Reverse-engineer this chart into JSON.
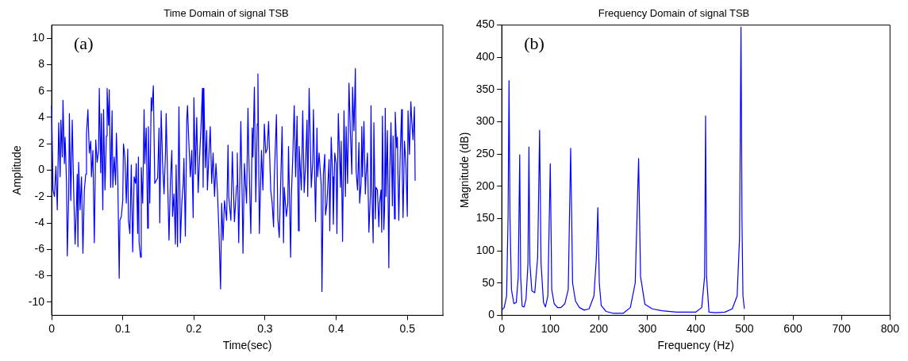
{
  "chart_data": [
    {
      "type": "line",
      "title": "Time Domain of signal TSB",
      "xlabel": "Time(sec)",
      "ylabel": "Amplitude",
      "annotations": [
        "(a)"
      ],
      "xlim": [
        0,
        0.55
      ],
      "ylim": [
        -11,
        11
      ],
      "xticks": [
        0,
        0.1,
        0.2,
        0.3,
        0.4,
        0.5
      ],
      "yticks": [
        -10,
        -8,
        -6,
        -4,
        -2,
        0,
        2,
        4,
        6,
        8,
        10
      ],
      "grid": false,
      "marker": "none",
      "series": [
        {
          "color": "#0000ff",
          "x": [
            0,
            0.002,
            0.004,
            0.006,
            0.008,
            0.01,
            0.012,
            0.013,
            0.015,
            0.016,
            0.018,
            0.019,
            0.021,
            0.022,
            0.024,
            0.025,
            0.027,
            0.029,
            0.031,
            0.033,
            0.035,
            0.036,
            0.037,
            0.038,
            0.04,
            0.042,
            0.044,
            0.046,
            0.048,
            0.049,
            0.051,
            0.053,
            0.055,
            0.056,
            0.058,
            0.06,
            0.062,
            0.064,
            0.066,
            0.067,
            0.069,
            0.07,
            0.072,
            0.073,
            0.075,
            0.077,
            0.078,
            0.08,
            0.081,
            0.083,
            0.085,
            0.086,
            0.088,
            0.09,
            0.091,
            0.093,
            0.095,
            0.096,
            0.098,
            0.1,
            0.101,
            0.103,
            0.105,
            0.107,
            0.108,
            0.11,
            0.112,
            0.113,
            0.114,
            0.116,
            0.118,
            0.119,
            0.121,
            0.122,
            0.123,
            0.125,
            0.126,
            0.128,
            0.13,
            0.131,
            0.133,
            0.135,
            0.136,
            0.137,
            0.138,
            0.14,
            0.141,
            0.143,
            0.145,
            0.147,
            0.149,
            0.151,
            0.152,
            0.154,
            0.156,
            0.158,
            0.16,
            0.161,
            0.163,
            0.165,
            0.167,
            0.169,
            0.17,
            0.172,
            0.174,
            0.175,
            0.177,
            0.179,
            0.181,
            0.183,
            0.185,
            0.186,
            0.188,
            0.19,
            0.191,
            0.193,
            0.195,
            0.197,
            0.199,
            0.2,
            0.202,
            0.204,
            0.206,
            0.208,
            0.21,
            0.212,
            0.213,
            0.214,
            0.216,
            0.218,
            0.219,
            0.221,
            0.223,
            0.225,
            0.227,
            0.229,
            0.231,
            0.233,
            0.235,
            0.2375,
            0.239,
            0.241,
            0.243,
            0.246,
            0.248,
            0.249,
            0.252,
            0.254,
            0.255,
            0.257,
            0.26,
            0.261,
            0.263,
            0.266,
            0.268,
            0.269,
            0.271,
            0.274,
            0.276,
            0.277,
            0.28,
            0.282,
            0.283,
            0.285,
            0.287,
            0.289,
            0.29,
            0.292,
            0.295,
            0.297,
            0.299,
            0.301,
            0.303,
            0.305,
            0.308,
            0.31,
            0.312,
            0.313,
            0.316,
            0.318,
            0.32,
            0.322,
            0.324,
            0.326,
            0.327,
            0.33,
            0.332,
            0.333,
            0.336,
            0.337,
            0.339,
            0.341,
            0.343,
            0.345,
            0.347,
            0.348,
            0.351,
            0.353,
            0.355,
            0.357,
            0.359,
            0.36,
            0.362,
            0.365,
            0.367,
            0.368,
            0.371,
            0.373,
            0.374,
            0.376,
            0.379,
            0.38,
            0.382,
            0.384,
            0.385,
            0.387,
            0.39,
            0.391,
            0.393,
            0.395,
            0.396,
            0.398,
            0.4,
            0.401,
            0.403,
            0.406,
            0.407,
            0.409,
            0.411,
            0.413,
            0.414,
            0.416,
            0.418,
            0.42,
            0.422,
            0.423,
            0.425,
            0.427,
            0.428,
            0.43,
            0.432,
            0.433,
            0.435,
            0.436,
            0.437,
            0.439,
            0.441,
            0.442,
            0.444,
            0.446,
            0.448,
            0.449,
            0.45,
            0.452,
            0.453,
            0.455,
            0.456,
            0.458,
            0.46,
            0.461,
            0.463,
            0.464,
            0.465,
            0.467,
            0.468,
            0.469,
            0.47,
            0.472,
            0.474,
            0.475,
            0.477,
            0.479,
            0.48,
            0.482,
            0.483,
            0.485,
            0.486,
            0.488,
            0.49,
            0.492,
            0.493,
            0.494,
            0.496,
            0.498,
            0.5,
            0.501,
            0.503,
            0.505,
            0.506,
            0.508,
            0.51,
            0.511
          ],
          "values": [
            4.9,
            -1.5,
            -2,
            0.3,
            -3,
            3.6,
            -0.5,
            3.8,
            1,
            5.3,
            0.5,
            2.5,
            -1,
            -6.5,
            -2,
            4.3,
            -2.3,
            3.8,
            -1.5,
            -5.6,
            -2.5,
            -0.3,
            -5.8,
            0.6,
            -3,
            -0.5,
            -6.3,
            -1.5,
            -0.3,
            2.7,
            4.6,
            1.3,
            2.2,
            -0.5,
            1.5,
            -5.5,
            2.3,
            0.6,
            1.5,
            6.2,
            -0.2,
            4.3,
            -3,
            4.6,
            -1.5,
            2.6,
            6.2,
            3.4,
            6.1,
            -1.3,
            4.5,
            -1.3,
            1,
            -1.1,
            2.8,
            -0.5,
            -8.2,
            -3.8,
            -3.5,
            -2.3,
            2,
            1,
            -2.5,
            1.6,
            -3.8,
            -4.8,
            0.4,
            -3,
            -6.2,
            -0.5,
            -1,
            0.5,
            -4.8,
            1,
            -5.5,
            -6.6,
            0.2,
            -2.5,
            4.6,
            0.5,
            3.2,
            -4.4,
            3.3,
            0.5,
            -2.5,
            5.5,
            4.5,
            6.4,
            -1,
            -0.8,
            -0.6,
            3.2,
            -4,
            4.5,
            0.5,
            -1.8,
            1.2,
            4.3,
            -0.5,
            -5.3,
            -0.8,
            1.5,
            -3.5,
            -1.8,
            -5.6,
            0.4,
            -5.8,
            4.8,
            -5.5,
            -2.5,
            -1,
            0.9,
            -5,
            3.8,
            4.9,
            2,
            -0.5,
            1.5,
            -3.6,
            5.5,
            -0.3,
            4,
            -1.7,
            1,
            3.3,
            6.2,
            -1.3,
            6.2,
            0.2,
            3,
            -1.5,
            1,
            3.3,
            -1,
            1.3,
            -2,
            0.5,
            -1.5,
            -4.3,
            -9,
            -2.5,
            -5.3,
            -2.3,
            -3.8,
            1.9,
            -2,
            -3.8,
            1.4,
            -0.5,
            -3.9,
            -1.2,
            1.3,
            -5.5,
            3.7,
            -2.5,
            -6.3,
            0.5,
            -2.5,
            4.7,
            1.5,
            -4.8,
            3.2,
            1,
            6.3,
            -2.4,
            3.5,
            7.3,
            -4.8,
            1.5,
            -1.5,
            3.5,
            1.3,
            1.6,
            3.7,
            -1.5,
            -2.5,
            -4.3,
            -0.6,
            4.2,
            -3.7,
            -5.1,
            -1,
            3.3,
            -5.5,
            -1.3,
            -3.5,
            -2.5,
            1.8,
            -6.6,
            -2,
            1,
            4.9,
            -0.5,
            4.1,
            -4.6,
            1.8,
            -1.5,
            4.5,
            -1.7,
            0.5,
            3.8,
            -2,
            6.2,
            -1.3,
            0.6,
            4.6,
            -3.9,
            3.2,
            -0.5,
            1.3,
            -1.2,
            -9.2,
            -0.3,
            1.2,
            -3.4,
            -2.5,
            0.8,
            -4.6,
            2.5,
            -0.5,
            -4.1,
            1.3,
            0.5,
            -4.8,
            4.3,
            -1.3,
            2.2,
            -5.4,
            4.5,
            -2,
            3.3,
            -1,
            6.6,
            2.8,
            -0.3,
            6.3,
            3,
            7.7,
            0,
            -1.5,
            2.1,
            -2.5,
            -1,
            3.3,
            -0.5,
            3.7,
            -1.8,
            -0.5,
            1.3,
            -4.7,
            -2,
            4.9,
            -1,
            -5.5,
            3.6,
            -3.7,
            -1.3,
            -1.5,
            -4.3,
            -2.5,
            -1.5,
            -4.7,
            4.1,
            -4.5,
            -3,
            4.7,
            -2,
            3,
            -7.4,
            -1,
            3.6,
            -2.7,
            2.6,
            -3.7,
            4.4,
            1.7,
            2.5,
            -3.8,
            1.2,
            4.6,
            -0.5,
            -3.6,
            2.2,
            0.5,
            -3.5,
            4.5,
            1.2,
            5.2,
            4,
            2.3,
            4.8,
            -0.8
          ]
        }
      ]
    },
    {
      "type": "line",
      "title": "Frequency Domain of signal TSB",
      "xlabel": "Frequency (Hz)",
      "ylabel": "Magnitude (dB)",
      "annotations": [
        "(b)"
      ],
      "xlim": [
        0,
        800
      ],
      "ylim": [
        0,
        450
      ],
      "xticks": [
        0,
        100,
        200,
        300,
        400,
        500,
        600,
        700,
        800
      ],
      "yticks": [
        0,
        50,
        100,
        150,
        200,
        250,
        300,
        350,
        400,
        450
      ],
      "grid": false,
      "marker": "none",
      "series": [
        {
          "color": "#0000ff",
          "x": [
            0,
            5,
            10,
            13,
            15,
            17,
            20,
            25,
            30,
            34,
            37,
            39,
            42,
            46,
            50,
            54,
            56,
            58,
            62,
            68,
            74,
            78,
            81,
            86,
            90,
            95,
            100,
            103,
            108,
            115,
            122,
            130,
            137,
            142,
            146,
            152,
            160,
            170,
            180,
            190,
            195,
            198,
            201,
            205,
            215,
            230,
            250,
            265,
            275,
            282,
            286,
            295,
            310,
            330,
            360,
            400,
            412,
            418,
            420,
            422,
            427,
            440,
            460,
            475,
            485,
            490,
            493,
            495,
            497,
            500
          ],
          "values": [
            8,
            12,
            30,
            150,
            364,
            150,
            40,
            18,
            20,
            60,
            249,
            60,
            14,
            13,
            25,
            80,
            261,
            80,
            38,
            35,
            90,
            287,
            80,
            20,
            13,
            30,
            235,
            40,
            18,
            12,
            12,
            18,
            40,
            259,
            50,
            22,
            12,
            8,
            10,
            30,
            90,
            167,
            50,
            15,
            6,
            3,
            3,
            12,
            50,
            243,
            60,
            17,
            10,
            7,
            5,
            5,
            12,
            60,
            309,
            60,
            5,
            4,
            5,
            10,
            30,
            120,
            447,
            150,
            30,
            10
          ]
        }
      ]
    }
  ]
}
